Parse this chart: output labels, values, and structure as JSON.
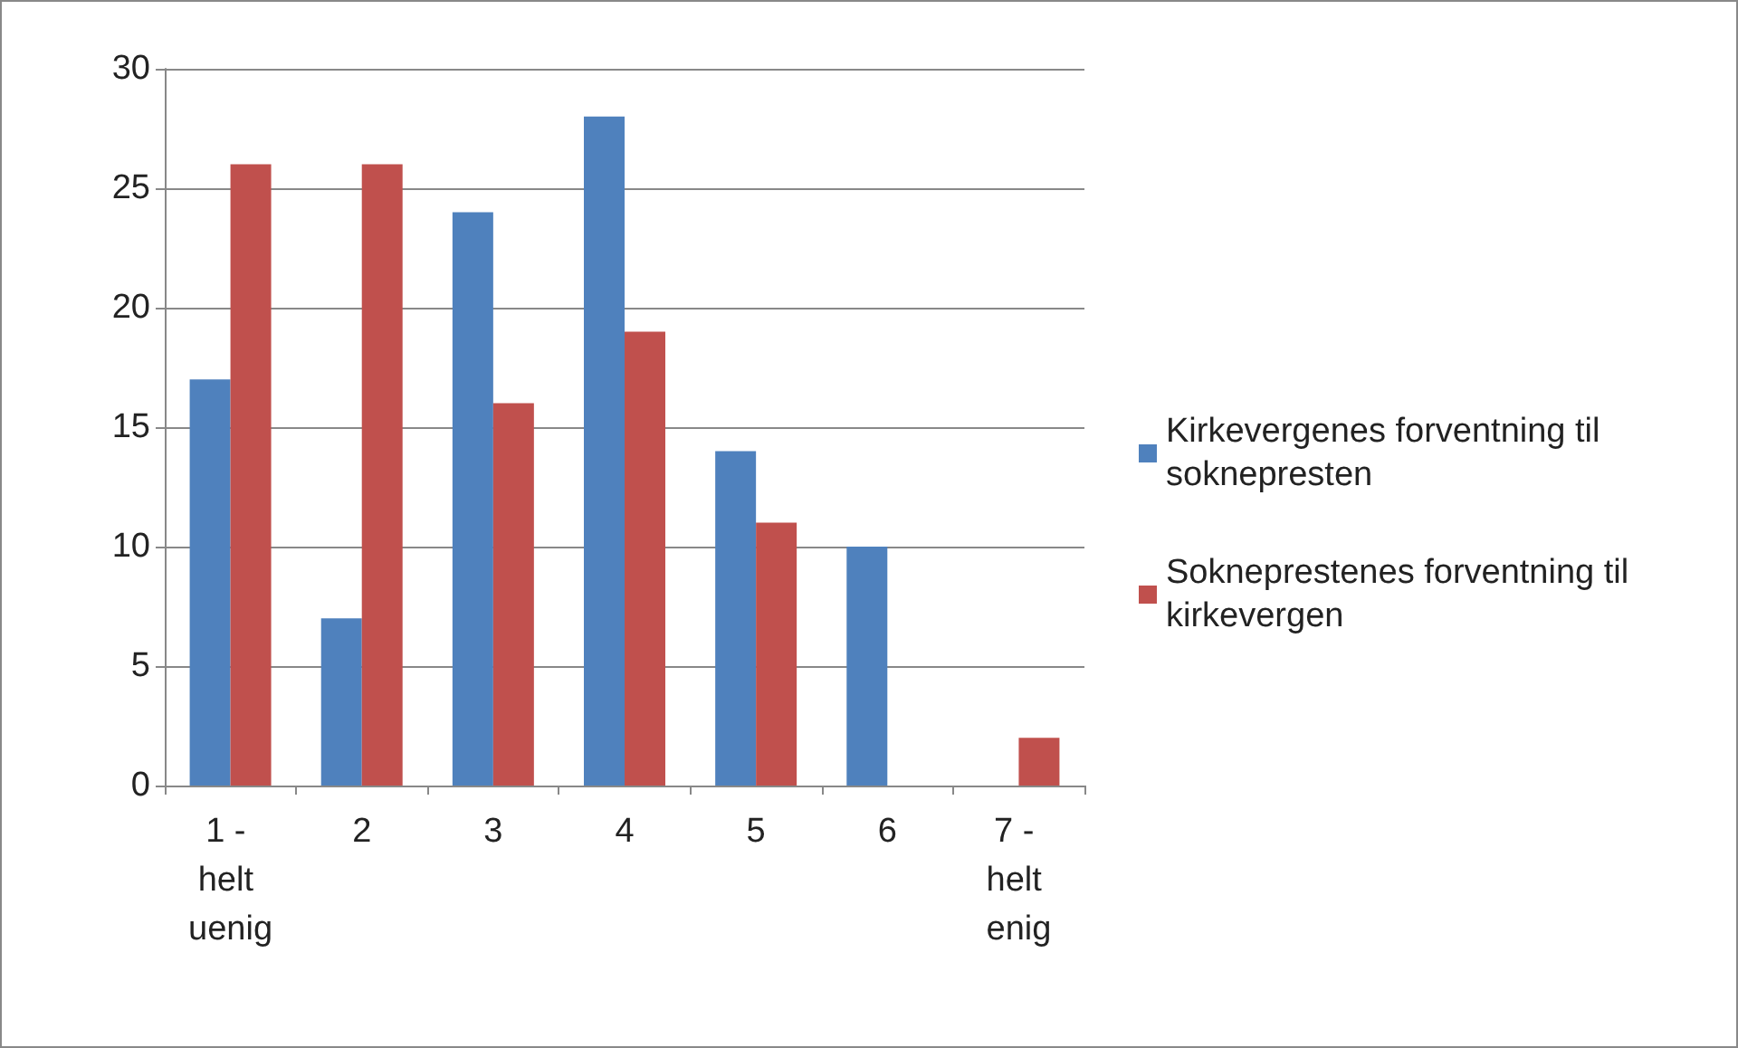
{
  "chart_data": {
    "type": "bar",
    "categories": [
      "1 - helt uenig",
      "2",
      "3",
      "4",
      "5",
      "6",
      "7 - helt enig"
    ],
    "series": [
      {
        "name": "Kirkevergenes forventning til soknepresten",
        "color": "#4f81bd",
        "values": [
          17,
          7,
          24,
          28,
          14,
          10,
          0
        ]
      },
      {
        "name": "Sokneprestenes forventning til kirkevergen",
        "color": "#c0504d",
        "values": [
          26,
          26,
          16,
          19,
          11,
          0,
          2
        ]
      }
    ],
    "ylim": [
      0,
      30
    ],
    "yticks": [
      0,
      5,
      10,
      15,
      20,
      25,
      30
    ],
    "grid": "y",
    "legend": "right"
  }
}
